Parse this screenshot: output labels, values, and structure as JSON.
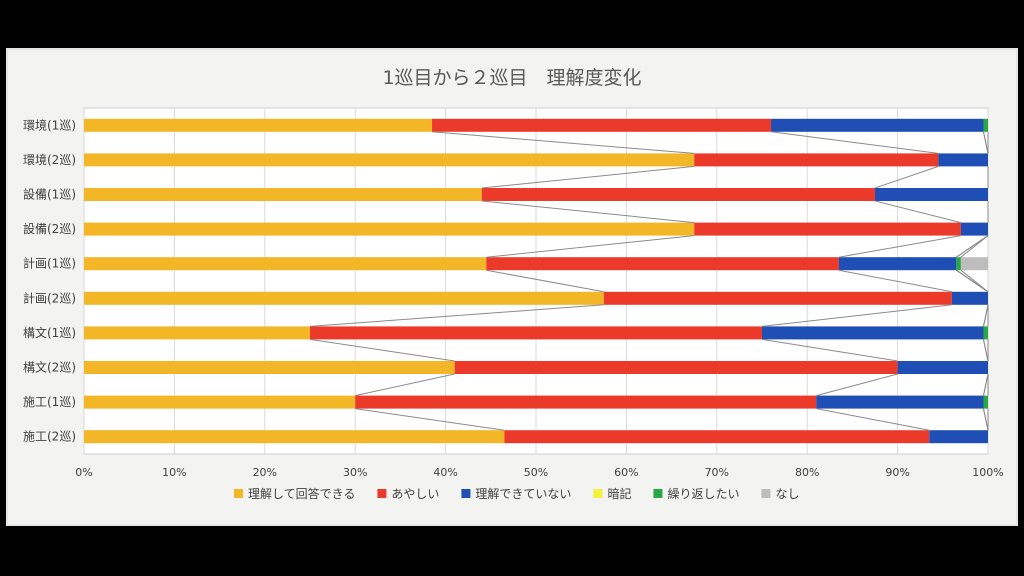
{
  "chart_data": {
    "type": "bar",
    "orientation": "horizontal",
    "stacked": "percent",
    "title": "1巡目から２巡目　理解度変化",
    "categories": [
      "環境(1巡)",
      "環境(2巡)",
      "設備(1巡)",
      "設備(2巡)",
      "計画(1巡)",
      "計画(2巡)",
      "構文(1巡)",
      "構文(2巡)",
      "施工(1巡)",
      "施工(2巡)"
    ],
    "series": [
      {
        "name": "理解して回答できる",
        "color": "#f2b627",
        "values": [
          38.5,
          67.5,
          44,
          67.5,
          44.5,
          57.5,
          25,
          41,
          30,
          46.5
        ]
      },
      {
        "name": "あやしい",
        "color": "#ec3a2a",
        "values": [
          37.5,
          27,
          43.5,
          29.5,
          39,
          38.5,
          50,
          49,
          51,
          47
        ]
      },
      {
        "name": "理解できていない",
        "color": "#1f4fb4",
        "values": [
          23.5,
          5.5,
          12.5,
          3,
          13,
          4,
          24.5,
          10,
          18.5,
          6.5
        ]
      },
      {
        "name": "暗記",
        "color": "#f5f23c",
        "values": [
          0,
          0,
          0,
          0,
          0,
          0,
          0,
          0,
          0,
          0
        ]
      },
      {
        "name": "繰り返したい",
        "color": "#28a745",
        "values": [
          0.5,
          0,
          0,
          0,
          0.5,
          0,
          0.5,
          0,
          0.5,
          0
        ]
      },
      {
        "name": "なし",
        "color": "#bdbdbd",
        "values": [
          0,
          0,
          0,
          0,
          3,
          0,
          0,
          0,
          0,
          0
        ]
      }
    ],
    "xlim": [
      0,
      100
    ],
    "xticks": [
      "0%",
      "10%",
      "20%",
      "30%",
      "40%",
      "50%",
      "60%",
      "70%",
      "80%",
      "90%",
      "100%"
    ],
    "grid": true,
    "series_lines": true,
    "legend": "bottom"
  }
}
